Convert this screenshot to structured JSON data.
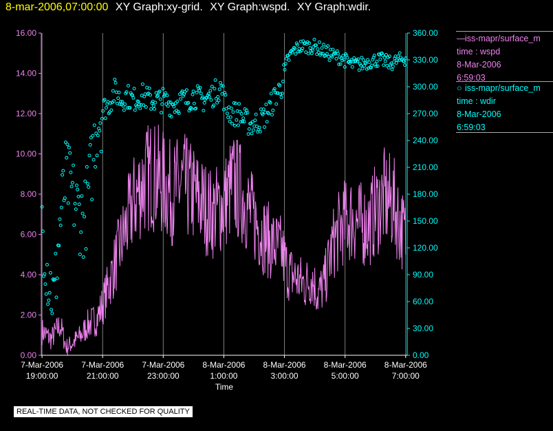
{
  "header": {
    "timestamp": "8-mar-2006,07:00:00",
    "graphs": [
      "XY Graph:xy-grid.",
      "XY Graph:wspd.",
      "XY Graph:wdir."
    ]
  },
  "legend": [
    {
      "lines": [
        "iss-mapr/surface_m",
        "time : wspd",
        "8-Mar-2006",
        "6:59:03"
      ],
      "marker": "line",
      "color": "#ee82ee"
    },
    {
      "lines": [
        "iss-mapr/surface_m",
        "time : wdir",
        "8-Mar-2006",
        "6:59:03"
      ],
      "marker": "circle",
      "color": "#00ffff"
    }
  ],
  "quality_note": "REAL-TIME DATA, NOT CHECKED FOR QUALITY",
  "chart_data": {
    "type": "scatter",
    "xlabel": "Time",
    "x_range": [
      18.975,
      31.05
    ],
    "x_ticks": [
      {
        "t": 19,
        "date": "7-Mar-2006",
        "time": "19:00:00"
      },
      {
        "t": 21,
        "date": "7-Mar-2006",
        "time": "21:00:00"
      },
      {
        "t": 23,
        "date": "7-Mar-2006",
        "time": "23:00:00"
      },
      {
        "t": 25,
        "date": "8-Mar-2006",
        "time": "1:00:00"
      },
      {
        "t": 27,
        "date": "8-Mar-2006",
        "time": "3:00:00"
      },
      {
        "t": 29,
        "date": "8-Mar-2006",
        "time": "5:00:00"
      },
      {
        "t": 31,
        "date": "8-Mar-2006",
        "time": "7:00:00"
      }
    ],
    "y_left": {
      "range": [
        0,
        16
      ],
      "ticks": [
        "0.00",
        "2.00",
        "4.00",
        "6.00",
        "8.00",
        "10.00",
        "12.00",
        "14.00",
        "16.00"
      ],
      "color": "#ee82ee"
    },
    "y_right": {
      "range": [
        0,
        360
      ],
      "ticks": [
        "0.00",
        "30.00",
        "60.00",
        "90.00",
        "120.00",
        "150.00",
        "180.00",
        "210.00",
        "240.00",
        "270.00",
        "300.00",
        "330.00",
        "360.00"
      ],
      "color": "#00ffff"
    },
    "grid": true,
    "series": [
      {
        "name": "time : wspd",
        "axis": "left",
        "style": "line",
        "color": "#ee82ee",
        "knots": [
          [
            19.0,
            1.2
          ],
          [
            19.3,
            0.8
          ],
          [
            19.6,
            1.5
          ],
          [
            19.8,
            0.4
          ],
          [
            20.0,
            0.6
          ],
          [
            20.3,
            1.0
          ],
          [
            20.5,
            1.5
          ],
          [
            20.8,
            1.8
          ],
          [
            21.0,
            2.5
          ],
          [
            21.2,
            3.5
          ],
          [
            21.4,
            4.5
          ],
          [
            21.6,
            5.5
          ],
          [
            21.8,
            6.5
          ],
          [
            22.0,
            7.5
          ],
          [
            22.3,
            8.5
          ],
          [
            22.6,
            9.0
          ],
          [
            23.0,
            8.5
          ],
          [
            23.3,
            8.0
          ],
          [
            23.6,
            8.5
          ],
          [
            24.0,
            8.0
          ],
          [
            24.3,
            7.5
          ],
          [
            24.6,
            7.0
          ],
          [
            25.0,
            7.5
          ],
          [
            25.3,
            8.5
          ],
          [
            25.6,
            8.0
          ],
          [
            25.9,
            7.0
          ],
          [
            26.3,
            6.0
          ],
          [
            26.6,
            5.5
          ],
          [
            26.9,
            5.2
          ],
          [
            27.1,
            4.2
          ],
          [
            27.4,
            3.8
          ],
          [
            27.7,
            3.5
          ],
          [
            27.9,
            3.9
          ],
          [
            28.1,
            3.0
          ],
          [
            28.3,
            3.5
          ],
          [
            28.6,
            5.5
          ],
          [
            28.9,
            6.5
          ],
          [
            29.2,
            6.8
          ],
          [
            29.5,
            6.5
          ],
          [
            29.8,
            6.5
          ],
          [
            30.0,
            7.2
          ],
          [
            30.3,
            7.8
          ],
          [
            30.6,
            7.5
          ],
          [
            30.9,
            6.2
          ],
          [
            31.0,
            5.9
          ]
        ]
      },
      {
        "name": "time : wdir",
        "axis": "right",
        "style": "points",
        "color": "#00ffff",
        "knots": [
          [
            19.0,
            150
          ],
          [
            19.2,
            90
          ],
          [
            19.4,
            60
          ],
          [
            19.6,
            150
          ],
          [
            19.8,
            200
          ],
          [
            20.0,
            180
          ],
          [
            20.2,
            160
          ],
          [
            20.4,
            150
          ],
          [
            20.6,
            200
          ],
          [
            20.8,
            260
          ],
          [
            21.0,
            275
          ],
          [
            21.2,
            280
          ],
          [
            21.4,
            295
          ],
          [
            21.6,
            285
          ],
          [
            21.8,
            290
          ],
          [
            22.0,
            285
          ],
          [
            22.3,
            290
          ],
          [
            22.6,
            285
          ],
          [
            23.0,
            285
          ],
          [
            23.3,
            280
          ],
          [
            23.6,
            285
          ],
          [
            23.8,
            285
          ],
          [
            24.0,
            290
          ],
          [
            24.3,
            285
          ],
          [
            24.6,
            290
          ],
          [
            24.9,
            300
          ],
          [
            25.1,
            275
          ],
          [
            25.3,
            270
          ],
          [
            25.5,
            270
          ],
          [
            25.7,
            262
          ],
          [
            25.9,
            258
          ],
          [
            26.1,
            260
          ],
          [
            26.3,
            265
          ],
          [
            26.5,
            275
          ],
          [
            26.7,
            290
          ],
          [
            26.9,
            300
          ],
          [
            27.1,
            330
          ],
          [
            27.3,
            340
          ],
          [
            27.5,
            345
          ],
          [
            27.7,
            345
          ],
          [
            28.0,
            345
          ],
          [
            28.3,
            340
          ],
          [
            28.6,
            335
          ],
          [
            28.9,
            332
          ],
          [
            29.2,
            325
          ],
          [
            29.5,
            325
          ],
          [
            29.8,
            328
          ],
          [
            30.0,
            330
          ],
          [
            30.2,
            330
          ],
          [
            30.5,
            326
          ],
          [
            30.8,
            330
          ],
          [
            31.0,
            332
          ]
        ]
      }
    ]
  }
}
